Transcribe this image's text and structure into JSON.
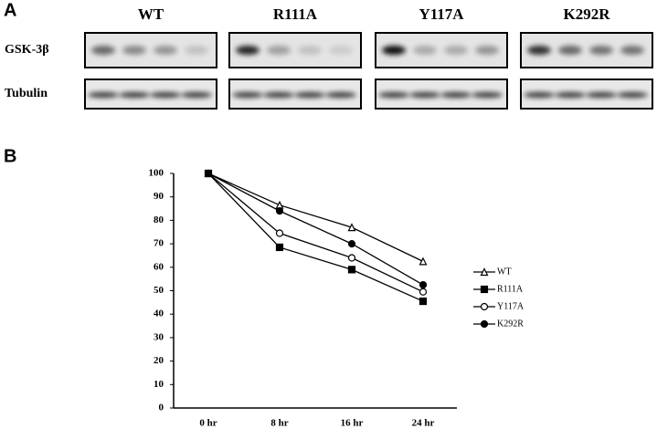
{
  "panel_a": {
    "label": "A",
    "lanes": [
      "WT",
      "R111A",
      "Y117A",
      "K292R"
    ],
    "rows": [
      "GSK-3β",
      "Tubulin"
    ]
  },
  "chart_data": {
    "type": "line",
    "label": "B",
    "categories": [
      "0 hr",
      "8 hr",
      "16 hr",
      "24 hr"
    ],
    "ylim": [
      0,
      100
    ],
    "yticks": [
      0,
      10,
      20,
      30,
      40,
      50,
      60,
      70,
      80,
      90,
      100
    ],
    "series": [
      {
        "name": "WT",
        "color": "#000000",
        "marker": "triangle",
        "values": [
          100,
          86.5,
          77,
          62.5
        ]
      },
      {
        "name": "R111A",
        "color": "#000000",
        "marker": "square",
        "values": [
          100,
          68.5,
          59,
          45.5
        ]
      },
      {
        "name": "Y117A",
        "color": "#000000",
        "marker": "open-circle",
        "values": [
          100,
          74.5,
          64,
          49.5
        ]
      },
      {
        "name": "K292R",
        "color": "#000000",
        "marker": "circle",
        "values": [
          100,
          84,
          70,
          52.5
        ]
      }
    ]
  }
}
